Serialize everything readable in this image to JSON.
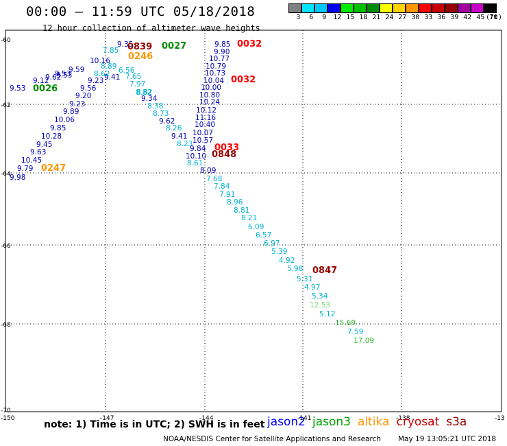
{
  "header": {
    "title": "00:00 – 11:59 UTC 05/18/2018",
    "subtitle": "12 hour collection of altimeter wave heights"
  },
  "legend": {
    "unit": "(ft)",
    "bins": [
      {
        "label": "3",
        "color": "#808080"
      },
      {
        "label": "6",
        "color": "#00e5ff"
      },
      {
        "label": "9",
        "color": "#00c8ff"
      },
      {
        "label": "12",
        "color": "#0000ee"
      },
      {
        "label": "15",
        "color": "#00ee00"
      },
      {
        "label": "18",
        "color": "#00c000"
      },
      {
        "label": "21",
        "color": "#008c00"
      },
      {
        "label": "24",
        "color": "#ffff00"
      },
      {
        "label": "27",
        "color": "#ffd200"
      },
      {
        "label": "30",
        "color": "#ff9600"
      },
      {
        "label": "33",
        "color": "#ff0000"
      },
      {
        "label": "36",
        "color": "#c80000"
      },
      {
        "label": "39",
        "color": "#960000"
      },
      {
        "label": "42",
        "color": "#a000a0"
      },
      {
        "label": "45",
        "color": "#c800c8"
      },
      {
        "label": "70",
        "color": "#000000"
      }
    ]
  },
  "axes": {
    "lat_labels": [
      "-60",
      "-62",
      "-64",
      "-66",
      "-68",
      "-70"
    ],
    "lon_labels": [
      "-150",
      "-147",
      "-144",
      "-141",
      "-138",
      "-13"
    ]
  },
  "colors": {
    "cyan": "#00b4d2",
    "navy": "#0000b4",
    "red": "#ff0000",
    "darkred": "#960000",
    "green": "#008c00",
    "orange": "#ff9600",
    "lightgreen": "#78dc78",
    "midgreen": "#28b428"
  },
  "track_labels": [
    {
      "text": "0027",
      "color": "#008c00",
      "bold": true
    },
    {
      "text": "0032",
      "color": "#ff0000",
      "bold": true
    },
    {
      "text": "0032",
      "color": "#ff0000",
      "bold": true
    },
    {
      "text": "0026",
      "color": "#008c00",
      "bold": true
    },
    {
      "text": "0247",
      "color": "#ff9600",
      "bold": true
    },
    {
      "text": "0246",
      "color": "#ff9600",
      "bold": true
    },
    {
      "text": "0839",
      "color": "#960000",
      "bold": true
    },
    {
      "text": "0033",
      "color": "#ff0000",
      "bold": true
    },
    {
      "text": "0848",
      "color": "#960000",
      "bold": true
    },
    {
      "text": "0847",
      "color": "#960000",
      "bold": true
    }
  ],
  "observations": [
    {
      "text": "9.35",
      "color": "#0000b4"
    },
    {
      "text": "7.85",
      "color": "#00b4d2"
    },
    {
      "text": "10.16",
      "color": "#0000b4"
    },
    {
      "text": "9.41",
      "color": "#0000b4"
    },
    {
      "text": "9.53",
      "color": "#0000b4"
    },
    {
      "text": "8.89",
      "color": "#00b4d2"
    },
    {
      "text": "8.62",
      "color": "#00b4d2"
    },
    {
      "text": "6.56",
      "color": "#00b4d2"
    },
    {
      "text": "7.65",
      "color": "#00b4d2"
    },
    {
      "text": "9.59",
      "color": "#0000b4"
    },
    {
      "text": "9.53",
      "color": "#0000b4"
    },
    {
      "text": "9.62",
      "color": "#0000b4"
    },
    {
      "text": "9.12",
      "color": "#0000b4"
    },
    {
      "text": "8.82",
      "color": "#00b4d2"
    },
    {
      "text": "9.53",
      "color": "#0000b4"
    },
    {
      "text": "9.23",
      "color": "#0000b4"
    },
    {
      "text": "7.97",
      "color": "#00b4d2"
    },
    {
      "text": "9.56",
      "color": "#0000b4"
    },
    {
      "text": "8.82",
      "color": "#00b4d2"
    },
    {
      "text": "9.20",
      "color": "#0000b4"
    },
    {
      "text": "9.34",
      "color": "#0000b4"
    },
    {
      "text": "9.23",
      "color": "#0000b4"
    },
    {
      "text": "8.38",
      "color": "#00b4d2"
    },
    {
      "text": "9.89",
      "color": "#0000b4"
    },
    {
      "text": "8.73",
      "color": "#00b4d2"
    },
    {
      "text": "10.06",
      "color": "#0000b4"
    },
    {
      "text": "9.62",
      "color": "#0000b4"
    },
    {
      "text": "9.85",
      "color": "#0000b4"
    },
    {
      "text": "8.26",
      "color": "#00b4d2"
    },
    {
      "text": "10.28",
      "color": "#0000b4"
    },
    {
      "text": "9.41",
      "color": "#0000b4"
    },
    {
      "text": "9.45",
      "color": "#0000b4"
    },
    {
      "text": "8.23",
      "color": "#00b4d2"
    },
    {
      "text": "9.63",
      "color": "#0000b4"
    },
    {
      "text": "10.45",
      "color": "#0000b4"
    },
    {
      "text": "9.79",
      "color": "#0000b4"
    },
    {
      "text": "9.98",
      "color": "#0000b4"
    },
    {
      "text": "9.85",
      "color": "#0000b4"
    },
    {
      "text": "9.90",
      "color": "#0000b4"
    },
    {
      "text": "10.77",
      "color": "#0000b4"
    },
    {
      "text": "10.79",
      "color": "#0000b4"
    },
    {
      "text": "10.73",
      "color": "#0000b4"
    },
    {
      "text": "10.04",
      "color": "#0000b4"
    },
    {
      "text": "10.00",
      "color": "#0000b4"
    },
    {
      "text": "10.80",
      "color": "#0000b4"
    },
    {
      "text": "10.24",
      "color": "#0000b4"
    },
    {
      "text": "10.12",
      "color": "#0000b4"
    },
    {
      "text": "11.16",
      "color": "#0000b4"
    },
    {
      "text": "10.40",
      "color": "#0000b4"
    },
    {
      "text": "10.07",
      "color": "#0000b4"
    },
    {
      "text": "10.57",
      "color": "#0000b4"
    },
    {
      "text": "9.84",
      "color": "#0000b4"
    },
    {
      "text": "10.10",
      "color": "#0000b4"
    },
    {
      "text": "8.61",
      "color": "#00b4d2"
    },
    {
      "text": "8.09",
      "color": "#0000b4"
    },
    {
      "text": "7.68",
      "color": "#00b4d2"
    },
    {
      "text": "7.84",
      "color": "#00b4d2"
    },
    {
      "text": "7.91",
      "color": "#00b4d2"
    },
    {
      "text": "8.96",
      "color": "#00b4d2"
    },
    {
      "text": "8.81",
      "color": "#00b4d2"
    },
    {
      "text": "8.21",
      "color": "#00b4d2"
    },
    {
      "text": "6.09",
      "color": "#00b4d2"
    },
    {
      "text": "6.57",
      "color": "#00b4d2"
    },
    {
      "text": "6.97",
      "color": "#00b4d2"
    },
    {
      "text": "5.39",
      "color": "#00b4d2"
    },
    {
      "text": "4.92",
      "color": "#00b4d2"
    },
    {
      "text": "5.98",
      "color": "#00b4d2"
    },
    {
      "text": "5.31",
      "color": "#00b4d2"
    },
    {
      "text": "4.97",
      "color": "#00b4d2"
    },
    {
      "text": "5.34",
      "color": "#00b4d2"
    },
    {
      "text": "12.53",
      "color": "#78dc78"
    },
    {
      "text": "5.12",
      "color": "#00b4d2"
    },
    {
      "text": "15.69",
      "color": "#28b428"
    },
    {
      "text": "7.59",
      "color": "#00b4d2"
    },
    {
      "text": "17.09",
      "color": "#28b428"
    }
  ],
  "footer": {
    "note": "note: 1) Time is in UTC; 2) SWH is in feet",
    "satellites": [
      {
        "name": "jason2",
        "color": "#0000ff"
      },
      {
        "name": "jason3",
        "color": "#00a000"
      },
      {
        "name": "altika",
        "color": "#ff9600"
      },
      {
        "name": "cryosat",
        "color": "#c80000"
      },
      {
        "name": "s3a",
        "color": "#960000"
      }
    ],
    "credit": "NOAA/NESDIS Center for Satellite Applications and Research",
    "timestamp": "May 19 13:05:21 UTC 2018"
  }
}
